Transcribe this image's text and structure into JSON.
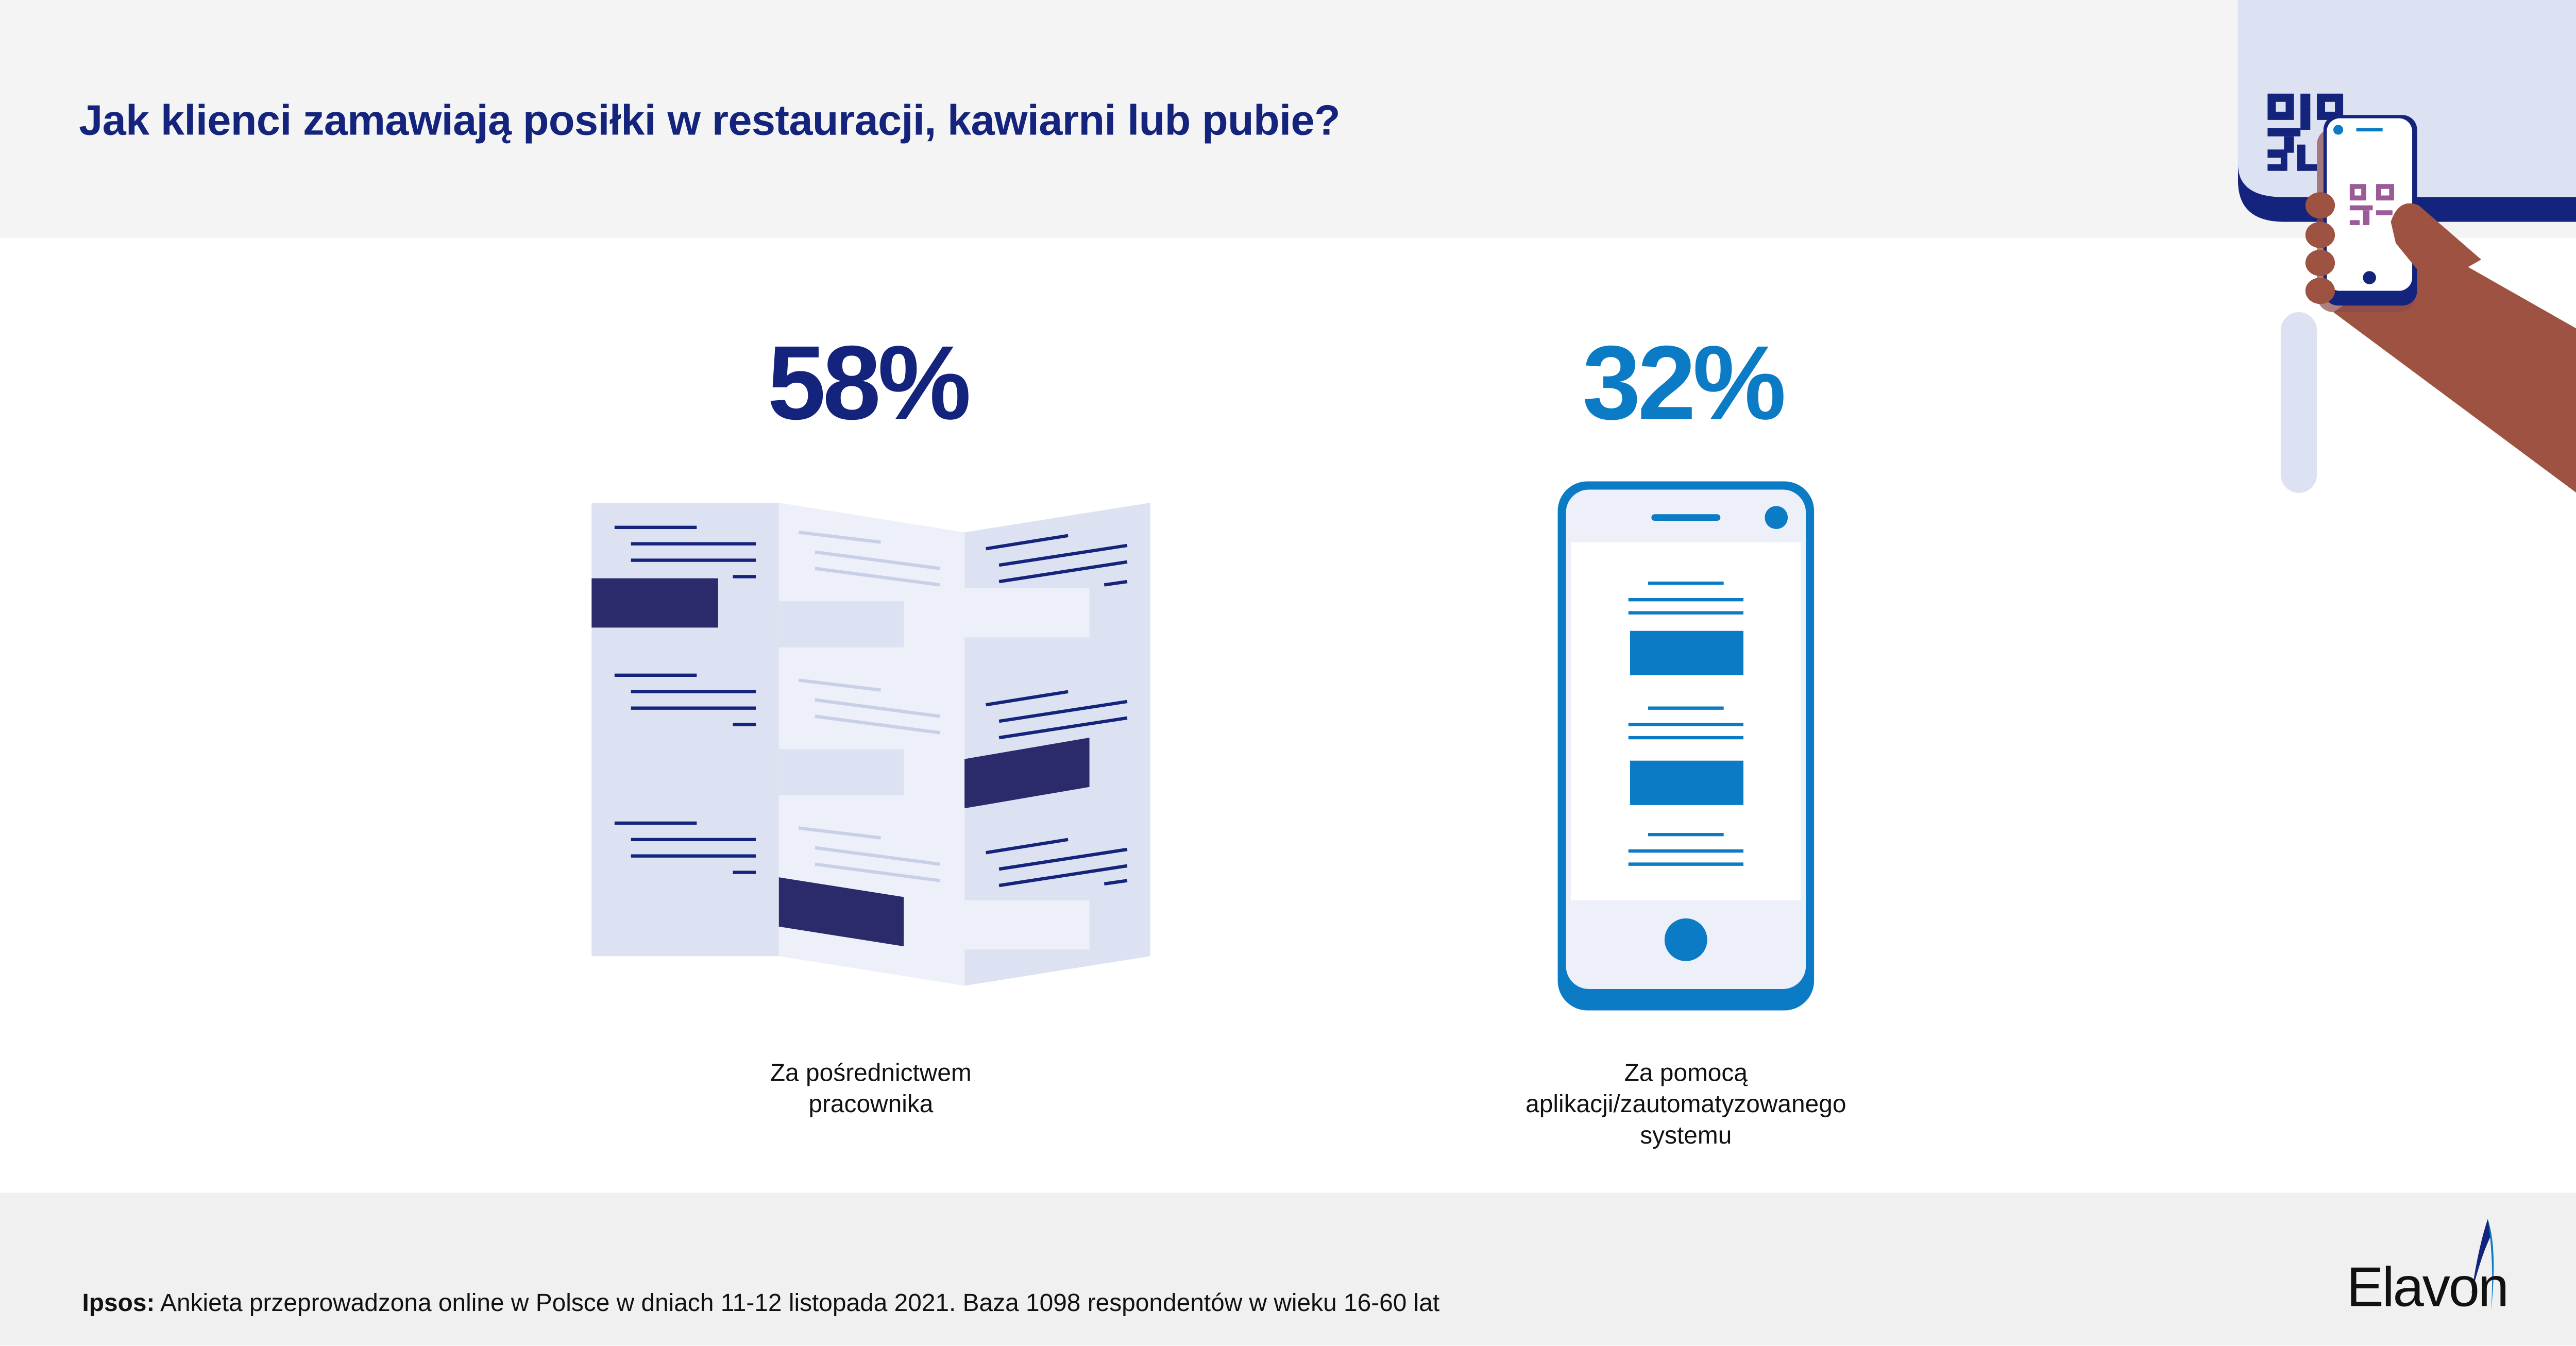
{
  "header": {
    "title": "Jak klienci zamawiają posiłki w restauracji, kawiarni lub pubie?"
  },
  "stats": [
    {
      "value": "58%",
      "label_line1": "Za pośrednictwem",
      "label_line2": "pracownika",
      "color": "#14237c"
    },
    {
      "value": "32%",
      "label_line1": "Za pomocą",
      "label_line2": "aplikacji/zautomatyzowanego",
      "label_line3": "systemu",
      "color": "#0a7bc4"
    }
  ],
  "footer": {
    "source_label": "Ipsos:",
    "source_text": " Ankieta przeprowadzona online w Polsce w dniach 11-12 listopada 2021. Baza 1098 respondentów w wieku 16-60 lat",
    "logo": "Elavon"
  },
  "colors": {
    "navy": "#14237c",
    "blue": "#0a7bc4",
    "light": "#dce2f1",
    "skin": "#9e5241",
    "qr_purple": "#9b5b96"
  }
}
